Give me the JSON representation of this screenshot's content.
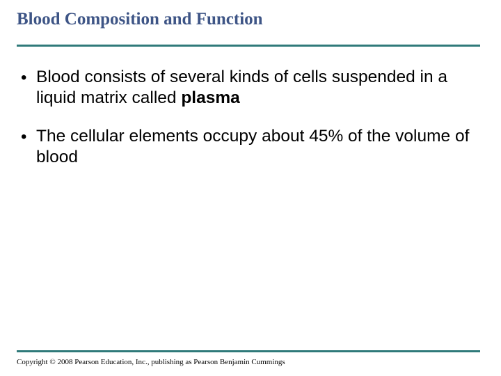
{
  "title": "Blood Composition and Function",
  "title_color": "#3e5586",
  "title_fontsize": 25,
  "rule_color": "#2f7a7a",
  "background_color": "#ffffff",
  "body_color": "#000000",
  "body_fontsize": 24.5,
  "bullets": [
    {
      "text_before": "Blood consists of several kinds of cells suspended in a liquid matrix called ",
      "bold": "plasma",
      "text_after": ""
    },
    {
      "text_before": "The cellular elements occupy about 45% of the volume of blood",
      "bold": "",
      "text_after": ""
    }
  ],
  "copyright": "Copyright © 2008 Pearson Education, Inc., publishing as Pearson Benjamin Cummings"
}
